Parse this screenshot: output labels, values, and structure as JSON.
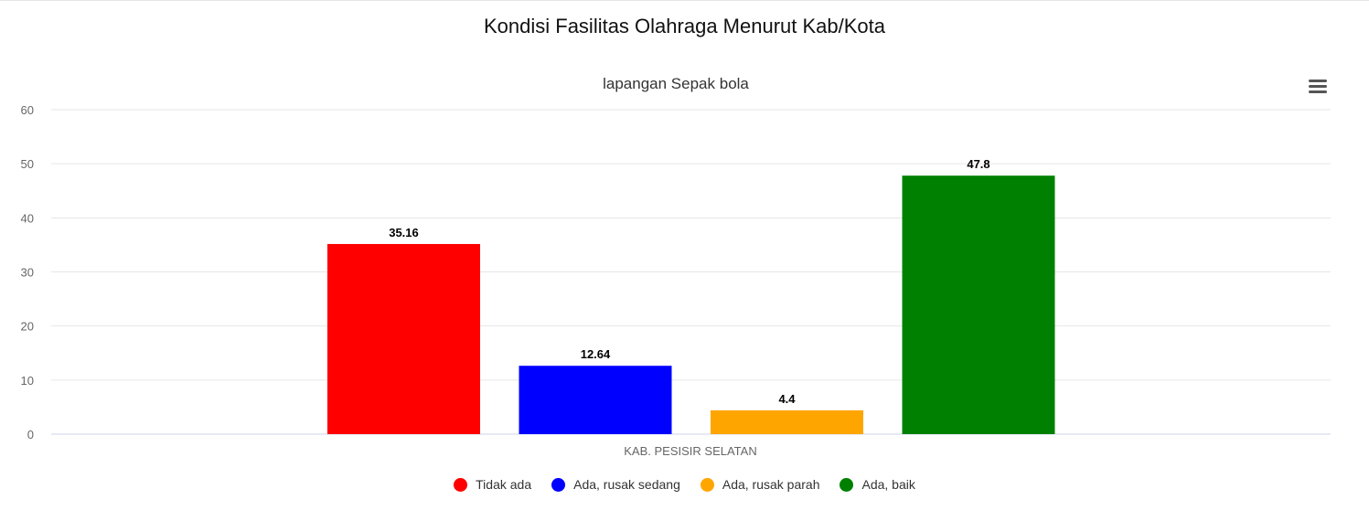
{
  "page": {
    "title": "Kondisi Fasilitas Olahraga Menurut Kab/Kota"
  },
  "toolbar": {
    "menu_icon": "hamburger-menu-icon"
  },
  "chart_data": {
    "type": "bar",
    "title": "lapangan Sepak bola",
    "xlabel": "",
    "ylabel": "",
    "categories": [
      "KAB. PESISIR SELATAN"
    ],
    "ylim": [
      0,
      60
    ],
    "yticks": [
      "0",
      "10",
      "20",
      "30",
      "40",
      "50",
      "60"
    ],
    "grid": true,
    "legend_position": "bottom",
    "data_labels": true,
    "series": [
      {
        "name": "Tidak ada",
        "values": [
          35.16
        ],
        "color": "#ff0000",
        "label": "35.16"
      },
      {
        "name": "Ada, rusak sedang",
        "values": [
          12.64
        ],
        "color": "#0000ff",
        "label": "12.64"
      },
      {
        "name": "Ada, rusak parah",
        "values": [
          4.4
        ],
        "color": "#ffa500",
        "label": "4.4"
      },
      {
        "name": "Ada, baik",
        "values": [
          47.8
        ],
        "color": "#008000",
        "label": "47.8"
      }
    ]
  }
}
